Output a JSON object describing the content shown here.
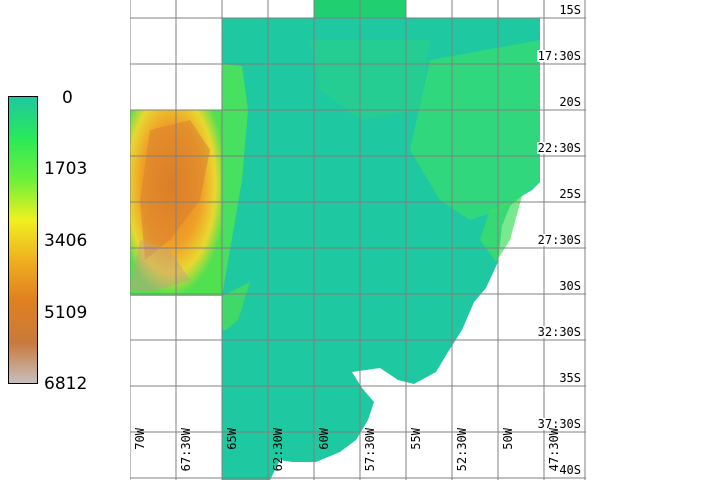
{
  "legend": {
    "ticks": [
      "0",
      "1703",
      "3406",
      "5109",
      "6812"
    ],
    "colors": [
      "#1ec8a0",
      "#28e85a",
      "#6ef03a",
      "#f0f020",
      "#f0b020",
      "#e08020",
      "#c87a3c",
      "#c8bebe"
    ]
  },
  "map": {
    "latitude_labels": [
      "15S",
      "17:30S",
      "20S",
      "22:30S",
      "25S",
      "27:30S",
      "30S",
      "32:30S",
      "35S",
      "37:30S",
      "40S"
    ],
    "longitude_labels": [
      "70W",
      "67:30W",
      "65W",
      "62:30W",
      "60W",
      "57:30W",
      "55W",
      "52:30W",
      "50W",
      "47:30W"
    ],
    "colors": {
      "lowland": "#1ec8a0",
      "hills": "#30e060",
      "highland": "#e89028",
      "peaks": "#c8a078",
      "background": "#ffffff",
      "grid": "#808080",
      "tile_top": "#20d070"
    }
  }
}
